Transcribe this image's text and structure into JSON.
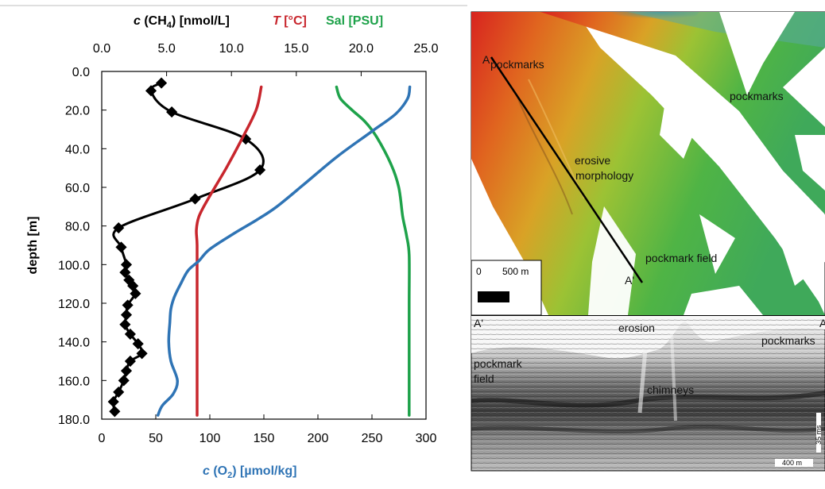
{
  "chart_data": {
    "type": "line",
    "top_axis": {
      "label_parts": [
        "c",
        " (CH",
        "4",
        ") [nmol/L]"
      ],
      "label_T": [
        "T",
        " [°C]"
      ],
      "label_sal": "Sal [PSU]",
      "range": [
        0,
        25
      ],
      "ticks": [
        "0.0",
        "5.0",
        "10.0",
        "15.0",
        "20.0",
        "25.0"
      ]
    },
    "bottom_axis": {
      "label_parts": [
        "c",
        " (O",
        "2",
        ") [µmol/kg]"
      ],
      "range": [
        0,
        300
      ],
      "ticks": [
        "0",
        "50",
        "100",
        "150",
        "200",
        "250",
        "300"
      ]
    },
    "y_axis": {
      "label": "depth [m]",
      "range": [
        0,
        180
      ],
      "inverted": true,
      "ticks": [
        "0.0",
        "20.0",
        "40.0",
        "60.0",
        "80.0",
        "100.0",
        "120.0",
        "140.0",
        "160.0",
        "180.0"
      ]
    },
    "colors": {
      "ch4": "#000000",
      "temp": "#c8262d",
      "sal": "#1ea24a",
      "o2": "#2f74b5"
    },
    "series": [
      {
        "key": "ch4",
        "axis": "top",
        "markers": true,
        "points": [
          [
            4.6,
            6
          ],
          [
            3.8,
            10
          ],
          [
            5.4,
            21
          ],
          [
            11.1,
            35
          ],
          [
            12.2,
            51
          ],
          [
            7.2,
            66
          ],
          [
            1.3,
            81
          ],
          [
            1.5,
            91
          ],
          [
            1.9,
            100
          ],
          [
            1.8,
            104
          ],
          [
            2.1,
            108
          ],
          [
            2.4,
            111
          ],
          [
            2.6,
            115
          ],
          [
            2.0,
            121
          ],
          [
            1.9,
            126
          ],
          [
            1.8,
            131
          ],
          [
            2.2,
            136
          ],
          [
            2.8,
            141
          ],
          [
            3.1,
            146
          ],
          [
            2.2,
            150
          ],
          [
            1.9,
            155
          ],
          [
            1.7,
            160
          ],
          [
            1.3,
            166
          ],
          [
            0.9,
            171
          ],
          [
            1.0,
            176
          ]
        ]
      },
      {
        "key": "temp",
        "axis": "top",
        "points": [
          [
            12.3,
            8
          ],
          [
            11.9,
            20
          ],
          [
            10.8,
            35
          ],
          [
            9.6,
            50
          ],
          [
            8.2,
            66
          ],
          [
            7.5,
            75
          ],
          [
            7.3,
            82
          ],
          [
            7.35,
            90
          ],
          [
            7.35,
            110
          ],
          [
            7.35,
            140
          ],
          [
            7.35,
            178
          ]
        ]
      },
      {
        "key": "sal",
        "axis": "top",
        "points": [
          [
            18.1,
            8
          ],
          [
            18.4,
            14
          ],
          [
            19.3,
            20
          ],
          [
            20.3,
            26
          ],
          [
            21.2,
            34
          ],
          [
            22.3,
            48
          ],
          [
            22.9,
            60
          ],
          [
            23.2,
            75
          ],
          [
            23.5,
            85
          ],
          [
            23.7,
            95
          ],
          [
            23.7,
            120
          ],
          [
            23.7,
            150
          ],
          [
            23.7,
            178
          ]
        ]
      },
      {
        "key": "o2",
        "axis": "bottom",
        "points": [
          [
            285,
            8
          ],
          [
            283,
            14
          ],
          [
            272,
            22
          ],
          [
            250,
            31
          ],
          [
            218,
            44
          ],
          [
            188,
            58
          ],
          [
            162,
            70
          ],
          [
            143,
            77
          ],
          [
            122,
            84
          ],
          [
            100,
            92
          ],
          [
            90,
            98
          ],
          [
            80,
            103
          ],
          [
            73,
            110
          ],
          [
            67,
            117
          ],
          [
            64,
            123
          ],
          [
            63,
            130
          ],
          [
            62,
            140
          ],
          [
            64,
            150
          ],
          [
            70,
            160
          ],
          [
            66,
            167
          ],
          [
            56,
            173
          ],
          [
            52,
            178
          ]
        ]
      }
    ]
  },
  "map": {
    "labels": [
      "pockmarks",
      "A",
      "pockmarks",
      "erosive",
      "morphology",
      "pockmark field",
      "A'"
    ],
    "scale": {
      "zero": "0",
      "label": "500 m"
    }
  },
  "profile": {
    "labels": [
      "A'",
      "erosion",
      "A",
      "pockmarks",
      "pockmark",
      "field",
      "chimneys"
    ],
    "vscale": "35 ms",
    "hscale": "400 m"
  }
}
